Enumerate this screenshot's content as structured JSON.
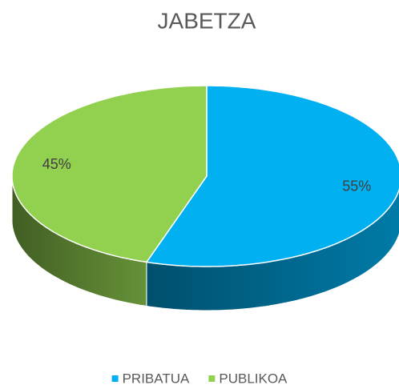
{
  "chart_data": {
    "type": "pie",
    "title": "JABETZA",
    "categories": [
      "PRIBATUA",
      "PUBLIKOA"
    ],
    "values": [
      55,
      45
    ],
    "value_labels": [
      "55%",
      "45%"
    ],
    "colors": [
      "#00b0f0",
      "#92d050"
    ],
    "legend": "bottom"
  }
}
